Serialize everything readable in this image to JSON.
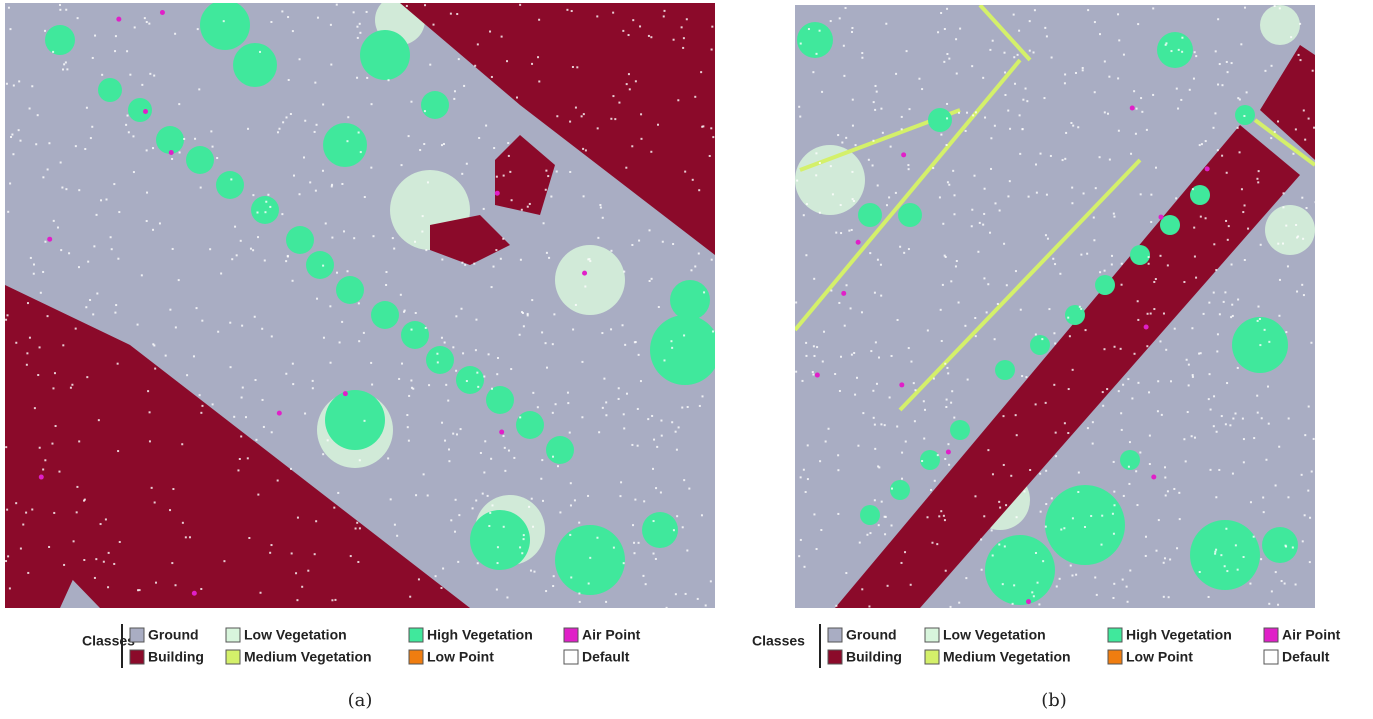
{
  "panels": [
    {
      "caption": "(a)",
      "legend": {
        "title": "Classes",
        "classes": [
          {
            "name": "Ground",
            "color": "#a9adc3"
          },
          {
            "name": "Building",
            "color": "#8b0a2a"
          },
          {
            "name": "Low Vegetation",
            "color": "#d8f5dc"
          },
          {
            "name": "Medium Vegetation",
            "color": "#d4f06a"
          },
          {
            "name": "High Vegetation",
            "color": "#40e89c"
          },
          {
            "name": "Low Point",
            "color": "#f07d10"
          },
          {
            "name": "Air Point",
            "color": "#e020c8"
          },
          {
            "name": "Default",
            "color": "#ffffff"
          }
        ]
      }
    },
    {
      "caption": "(b)",
      "legend": {
        "title": "Classes",
        "classes": [
          {
            "name": "Ground",
            "color": "#a9adc3"
          },
          {
            "name": "Building",
            "color": "#8b0a2a"
          },
          {
            "name": "Low Vegetation",
            "color": "#d8f5dc"
          },
          {
            "name": "Medium Vegetation",
            "color": "#d4f06a"
          },
          {
            "name": "High Vegetation",
            "color": "#40e89c"
          },
          {
            "name": "Low Point",
            "color": "#f07d10"
          },
          {
            "name": "Air Point",
            "color": "#e020c8"
          },
          {
            "name": "Default",
            "color": "#ffffff"
          }
        ]
      }
    }
  ]
}
